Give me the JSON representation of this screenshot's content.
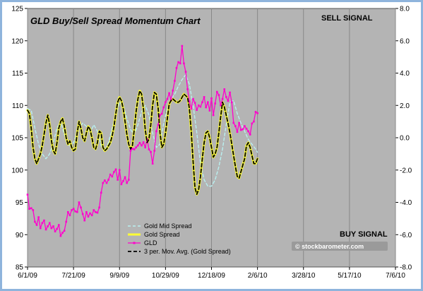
{
  "chart_data": {
    "type": "line",
    "title": "GLD Buy/Sell Spread Momentum Chart",
    "annotations": {
      "sell_signal": "SELL SIGNAL",
      "buy_signal": "BUY SIGNAL",
      "watermark": "© stockbarometer.com"
    },
    "x_tick_labels": [
      "6/1/09",
      "7/21/09",
      "9/9/09",
      "10/29/09",
      "12/18/09",
      "2/6/10",
      "3/28/10",
      "5/17/10",
      "7/6/10"
    ],
    "x_tick_days": [
      0,
      50,
      100,
      150,
      200,
      250,
      300,
      350,
      400
    ],
    "left_axis": {
      "ylim": [
        85,
        125
      ],
      "ticks": [
        85,
        90,
        95,
        100,
        105,
        110,
        115,
        120,
        125
      ],
      "tick_labels": [
        "85",
        "90",
        "95",
        "100",
        "105",
        "110",
        "115",
        "120",
        "125"
      ]
    },
    "right_axis": {
      "ylim": [
        -8,
        8
      ],
      "ticks": [
        -8,
        -6,
        -4,
        -2,
        0,
        2,
        4,
        6,
        8
      ],
      "tick_labels": [
        "-8.0",
        "-6.0",
        "-4.0",
        "-2.0",
        "0.0",
        "2.0",
        "4.0",
        "6.0",
        "8.0"
      ]
    },
    "grid": false,
    "legend_position": "bottom-center",
    "colors": {
      "plot_bg": "#b4b4b4",
      "outer_bg": "#ffffff",
      "border": "#8fb4dc",
      "gold_mid": "#b9f0f0",
      "gold_spread": "#ffff33",
      "gld": "#ff00cc",
      "moving_avg": "#000000"
    },
    "series": [
      {
        "name": "Gold Mid Spread",
        "axis": "right",
        "style": "dashed",
        "x": [
          0,
          4,
          8,
          12,
          16,
          20,
          24,
          28,
          32,
          36,
          40,
          44,
          48,
          52,
          56,
          60,
          64,
          68,
          72,
          76,
          80,
          84,
          88,
          92,
          96,
          100,
          104,
          108,
          112,
          116,
          120,
          124,
          128,
          132,
          136,
          140,
          144,
          148,
          152,
          156,
          160,
          164,
          168,
          172,
          176,
          180,
          184,
          188,
          192,
          196,
          200,
          204,
          208,
          212,
          216,
          220,
          224,
          228,
          232,
          236,
          240,
          244,
          248,
          250
        ],
        "y": [
          1.8,
          1.7,
          0.6,
          -0.4,
          -1.0,
          -1.3,
          -1.0,
          -0.3,
          0.6,
          1.0,
          0.2,
          -0.4,
          -0.6,
          0.0,
          0.6,
          0.9,
          0.7,
          0.3,
          0.8,
          0.4,
          -0.5,
          -0.8,
          -0.3,
          0.6,
          1.4,
          2.2,
          2.0,
          1.2,
          0.5,
          0.2,
          0.8,
          1.6,
          2.0,
          1.4,
          0.3,
          -0.6,
          -0.4,
          0.9,
          1.8,
          2.4,
          2.7,
          3.2,
          3.6,
          3.9,
          3.3,
          2.0,
          0.3,
          -1.6,
          -2.6,
          -3.0,
          -3.0,
          -2.6,
          -1.8,
          -0.7,
          0.8,
          2.2,
          2.3,
          1.5,
          0.9,
          0.4,
          -0.1,
          -0.4,
          -0.7,
          -0.9
        ]
      },
      {
        "name": "Gold  Spread",
        "axis": "right",
        "style": "solid",
        "x": [
          0,
          2,
          4,
          6,
          8,
          10,
          12,
          14,
          16,
          18,
          20,
          22,
          24,
          26,
          28,
          30,
          32,
          34,
          36,
          38,
          40,
          42,
          44,
          46,
          48,
          50,
          52,
          54,
          56,
          58,
          60,
          62,
          64,
          66,
          68,
          70,
          72,
          74,
          76,
          78,
          80,
          82,
          84,
          86,
          88,
          90,
          92,
          94,
          96,
          98,
          100,
          102,
          104,
          106,
          108,
          110,
          112,
          114,
          116,
          118,
          120,
          122,
          124,
          126,
          128,
          130,
          132,
          134,
          136,
          138,
          140,
          142,
          144,
          146,
          148,
          150,
          152,
          154,
          156,
          158,
          160,
          162,
          164,
          166,
          168,
          170,
          172,
          174,
          176,
          178,
          180,
          182,
          184,
          186,
          188,
          190,
          192,
          194,
          196,
          198,
          200,
          202,
          204,
          206,
          208,
          210,
          212,
          214,
          216,
          218,
          220,
          222,
          224,
          226,
          228,
          230,
          232,
          234,
          236,
          238,
          240,
          242,
          244,
          246,
          248,
          250
        ],
        "y": [
          1.7,
          1.5,
          0.6,
          -0.6,
          -1.3,
          -1.6,
          -1.3,
          -1.0,
          -0.5,
          0.2,
          0.9,
          1.4,
          0.8,
          -0.2,
          -0.8,
          -1.0,
          -0.3,
          0.6,
          1.0,
          1.2,
          0.7,
          0.0,
          -0.4,
          -0.2,
          -0.6,
          -0.8,
          -0.7,
          0.3,
          1.0,
          0.6,
          0.0,
          -0.2,
          0.3,
          0.7,
          0.5,
          0.0,
          -0.6,
          -0.7,
          -0.3,
          0.4,
          0.3,
          -0.6,
          -0.8,
          -0.7,
          -0.5,
          -0.3,
          0.1,
          0.7,
          1.5,
          2.2,
          2.5,
          2.3,
          1.8,
          1.0,
          0.2,
          -0.4,
          -0.7,
          -0.5,
          0.5,
          1.6,
          2.4,
          2.9,
          2.7,
          1.8,
          0.5,
          -0.3,
          -0.1,
          0.8,
          2.0,
          2.8,
          2.7,
          1.8,
          0.3,
          -0.6,
          -0.4,
          0.3,
          1.2,
          2.1,
          2.3,
          2.4,
          2.3,
          2.2,
          2.2,
          2.3,
          2.5,
          2.7,
          2.6,
          2.5,
          1.8,
          0.4,
          -1.5,
          -3.1,
          -3.5,
          -3.2,
          -2.4,
          -1.3,
          -0.3,
          0.3,
          0.4,
          0.0,
          -0.6,
          -1.2,
          -1.0,
          -0.6,
          0.3,
          1.3,
          2.2,
          1.9,
          1.4,
          0.9,
          0.3,
          -0.4,
          -1.1,
          -1.8,
          -2.4,
          -2.5,
          -2.1,
          -1.7,
          -1.3,
          -0.5,
          -0.3,
          -0.6,
          -1.1,
          -1.6,
          -1.6,
          -1.3
        ]
      },
      {
        "name": "GLD",
        "axis": "left",
        "style": "solid-markers",
        "x": [
          0,
          2,
          4,
          6,
          8,
          10,
          12,
          14,
          16,
          18,
          20,
          22,
          24,
          26,
          28,
          30,
          32,
          34,
          36,
          38,
          40,
          42,
          44,
          46,
          48,
          50,
          52,
          54,
          56,
          58,
          60,
          62,
          64,
          66,
          68,
          70,
          72,
          74,
          76,
          78,
          80,
          82,
          84,
          86,
          88,
          90,
          92,
          94,
          96,
          98,
          100,
          102,
          104,
          106,
          108,
          110,
          112,
          114,
          116,
          118,
          120,
          122,
          124,
          126,
          128,
          130,
          132,
          134,
          136,
          138,
          140,
          142,
          144,
          146,
          148,
          150,
          152,
          154,
          156,
          158,
          160,
          162,
          164,
          166,
          168,
          170,
          172,
          174,
          176,
          178,
          180,
          182,
          184,
          186,
          188,
          190,
          192,
          194,
          196,
          198,
          200,
          202,
          204,
          206,
          208,
          210,
          212,
          214,
          216,
          218,
          220,
          222,
          224,
          226,
          228,
          230,
          232,
          234,
          236,
          238,
          240,
          242,
          244,
          246,
          248,
          250
        ],
        "y": [
          96.2,
          94.0,
          94.1,
          93.8,
          92.0,
          91.5,
          92.7,
          91.0,
          91.8,
          92.2,
          90.8,
          91.3,
          91.8,
          91.0,
          91.3,
          90.5,
          90.9,
          91.5,
          89.8,
          90.3,
          90.6,
          92.0,
          93.5,
          93.0,
          93.8,
          94.0,
          93.6,
          93.5,
          95.0,
          94.2,
          93.2,
          92.2,
          93.5,
          92.8,
          93.3,
          93.0,
          93.8,
          93.5,
          93.4,
          94.2,
          96.5,
          98.0,
          98.4,
          98.0,
          98.5,
          99.3,
          99.0,
          99.7,
          100.1,
          98.5,
          100.0,
          97.8,
          98.3,
          98.9,
          98.0,
          98.5,
          103.0,
          103.3,
          103.2,
          103.5,
          103.8,
          104.2,
          103.8,
          104.3,
          103.5,
          104.8,
          103.2,
          102.8,
          101.0,
          103.0,
          106.0,
          107.0,
          108.5,
          108.7,
          109.7,
          110.5,
          111.0,
          111.9,
          110.8,
          112.3,
          113.8,
          115.8,
          116.7,
          116.5,
          119.2,
          116.5,
          115.2,
          112.5,
          110.6,
          109.5,
          111.0,
          110.4,
          109.3,
          110.0,
          109.8,
          110.5,
          111.3,
          109.7,
          110.5,
          109.2,
          111.1,
          108.5,
          110.3,
          112.1,
          111.6,
          110.0,
          111.0,
          112.5,
          111.3,
          110.7,
          112.0,
          110.5,
          107.3,
          106.8,
          105.9,
          107.3,
          106.2,
          106.3,
          106.8,
          106.4,
          106.0,
          105.5,
          107.2,
          107.5,
          109.0,
          108.8
        ]
      },
      {
        "name": "3 per. Mov. Avg. (Gold  Spread)",
        "axis": "right",
        "style": "dashed-bold",
        "x": [
          0,
          2,
          4,
          6,
          8,
          10,
          12,
          14,
          16,
          18,
          20,
          22,
          24,
          26,
          28,
          30,
          32,
          34,
          36,
          38,
          40,
          42,
          44,
          46,
          48,
          50,
          52,
          54,
          56,
          58,
          60,
          62,
          64,
          66,
          68,
          70,
          72,
          74,
          76,
          78,
          80,
          82,
          84,
          86,
          88,
          90,
          92,
          94,
          96,
          98,
          100,
          102,
          104,
          106,
          108,
          110,
          112,
          114,
          116,
          118,
          120,
          122,
          124,
          126,
          128,
          130,
          132,
          134,
          136,
          138,
          140,
          142,
          144,
          146,
          148,
          150,
          152,
          154,
          156,
          158,
          160,
          162,
          164,
          166,
          168,
          170,
          172,
          174,
          176,
          178,
          180,
          182,
          184,
          186,
          188,
          190,
          192,
          194,
          196,
          198,
          200,
          202,
          204,
          206,
          208,
          210,
          212,
          214,
          216,
          218,
          220,
          222,
          224,
          226,
          228,
          230,
          232,
          234,
          236,
          238,
          240,
          242,
          244,
          246,
          248,
          250
        ],
        "y": [
          1.7,
          1.5,
          0.6,
          -0.6,
          -1.3,
          -1.6,
          -1.3,
          -1.0,
          -0.5,
          0.2,
          0.9,
          1.4,
          0.8,
          -0.2,
          -0.8,
          -1.0,
          -0.3,
          0.6,
          1.0,
          1.2,
          0.7,
          0.0,
          -0.4,
          -0.2,
          -0.6,
          -0.8,
          -0.7,
          0.3,
          1.0,
          0.6,
          0.0,
          -0.2,
          0.3,
          0.7,
          0.5,
          0.0,
          -0.6,
          -0.7,
          -0.3,
          0.4,
          0.3,
          -0.6,
          -0.8,
          -0.7,
          -0.5,
          -0.3,
          0.1,
          0.7,
          1.5,
          2.2,
          2.5,
          2.3,
          1.8,
          1.0,
          0.2,
          -0.4,
          -0.7,
          -0.5,
          0.5,
          1.6,
          2.4,
          2.9,
          2.7,
          1.8,
          0.5,
          -0.3,
          -0.1,
          0.8,
          2.0,
          2.8,
          2.7,
          1.8,
          0.3,
          -0.6,
          -0.4,
          0.3,
          1.2,
          2.1,
          2.3,
          2.4,
          2.3,
          2.2,
          2.2,
          2.3,
          2.5,
          2.7,
          2.6,
          2.5,
          1.8,
          0.4,
          -1.5,
          -3.1,
          -3.5,
          -3.2,
          -2.4,
          -1.3,
          -0.3,
          0.3,
          0.4,
          0.0,
          -0.6,
          -1.2,
          -1.0,
          -0.6,
          0.3,
          1.3,
          2.2,
          1.9,
          1.4,
          0.9,
          0.3,
          -0.4,
          -1.1,
          -1.8,
          -2.4,
          -2.5,
          -2.1,
          -1.7,
          -1.3,
          -0.5,
          -0.3,
          -0.6,
          -1.1,
          -1.6,
          -1.6,
          -1.3
        ]
      }
    ]
  }
}
